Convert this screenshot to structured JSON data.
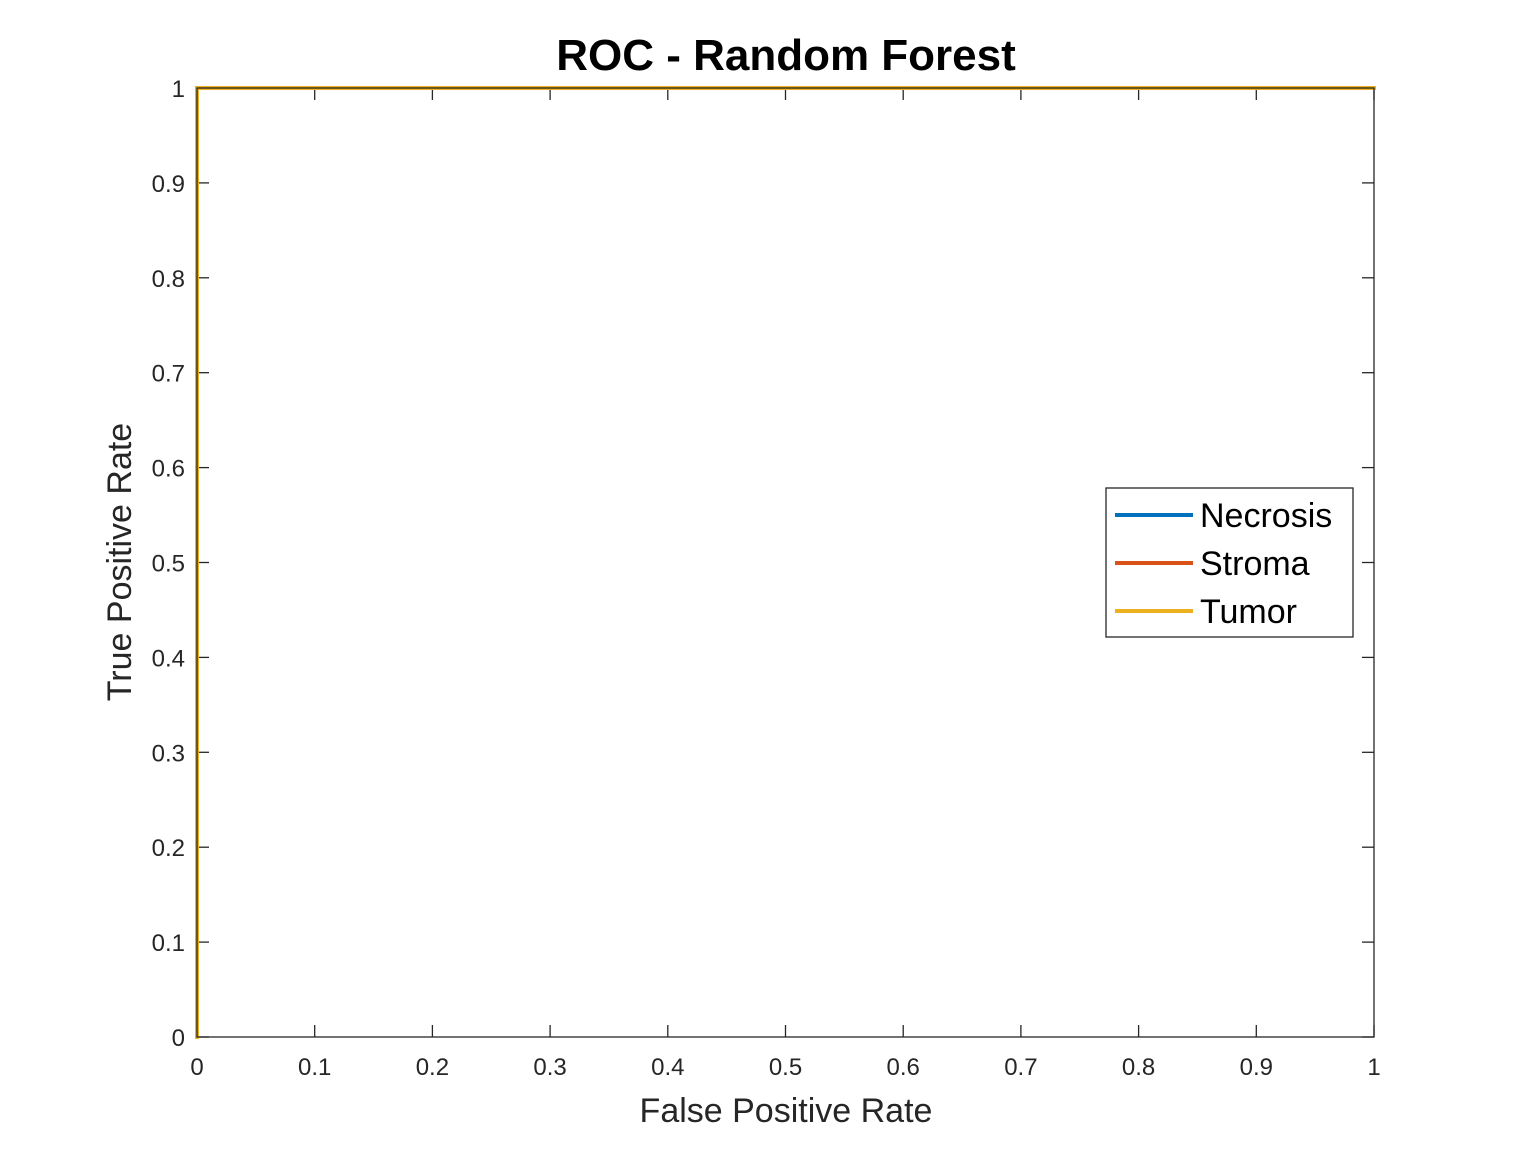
{
  "chart_data": {
    "type": "line",
    "title": "ROC - Random Forest",
    "xlabel": "False Positive Rate",
    "ylabel": "True Positive Rate",
    "xlim": [
      0,
      1
    ],
    "ylim": [
      0,
      1
    ],
    "x_ticks": [
      "0",
      "0.1",
      "0.2",
      "0.3",
      "0.4",
      "0.5",
      "0.6",
      "0.7",
      "0.8",
      "0.9",
      "1"
    ],
    "y_ticks": [
      "0",
      "0.1",
      "0.2",
      "0.3",
      "0.4",
      "0.5",
      "0.6",
      "0.7",
      "0.8",
      "0.9",
      "1"
    ],
    "grid": false,
    "legend_position": "right",
    "series": [
      {
        "name": "Necrosis",
        "color": "#0072BD",
        "x": [
          0,
          0,
          1
        ],
        "y": [
          0,
          1,
          1
        ]
      },
      {
        "name": "Stroma",
        "color": "#D95319",
        "x": [
          0,
          0,
          1
        ],
        "y": [
          0,
          1,
          1
        ]
      },
      {
        "name": "Tumor",
        "color": "#EDB120",
        "x": [
          0,
          0,
          1
        ],
        "y": [
          0,
          1,
          1
        ]
      }
    ]
  }
}
